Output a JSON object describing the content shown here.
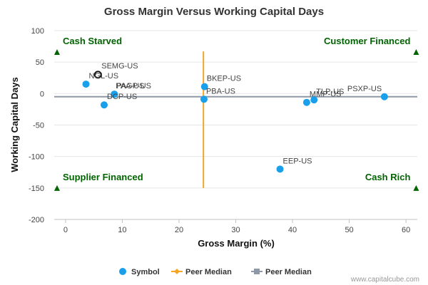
{
  "chart_data": {
    "type": "scatter",
    "title": "Gross Margin Versus Working Capital Days",
    "xlabel": "Gross Margin (%)",
    "ylabel": "Working Capital Days",
    "xlim": [
      -2,
      62
    ],
    "ylim": [
      -200,
      100
    ],
    "x_ticks": [
      0,
      10,
      20,
      30,
      40,
      50,
      60
    ],
    "y_ticks": [
      100,
      50,
      0,
      -50,
      -100,
      -150,
      -200
    ],
    "grid": "horizontal",
    "series": [
      {
        "name": "Symbol",
        "color": "#1a9fea",
        "points": [
          {
            "label": "SEMG-US",
            "x": 5.7,
            "y": 30,
            "highlight": true
          },
          {
            "label": "NGL-US",
            "x": 3.6,
            "y": 15
          },
          {
            "label": "PAA-US",
            "x": 8.6,
            "y": -1
          },
          {
            "label": "PAGP-US",
            "x": 8.6,
            "y": -1
          },
          {
            "label": "DCP-US",
            "x": 6.8,
            "y": -18
          },
          {
            "label": "BKEP-US",
            "x": 24.5,
            "y": 11
          },
          {
            "label": "PBA-US",
            "x": 24.4,
            "y": -9
          },
          {
            "label": "MMP-US",
            "x": 42.5,
            "y": -14
          },
          {
            "label": "TLP-US",
            "x": 43.8,
            "y": -10
          },
          {
            "label": "PSXP-US",
            "x": 56.2,
            "y": -5
          },
          {
            "label": "EEP-US",
            "x": 37.8,
            "y": -120
          }
        ]
      }
    ],
    "peer_median_x": {
      "name": "Peer Median",
      "value": 24.3,
      "y_range": [
        -150,
        67
      ],
      "color": "#f5a623"
    },
    "peer_median_y": {
      "name": "Peer Median",
      "value": -5,
      "color": "#8f98a6"
    },
    "quadrants": {
      "top_left": {
        "label": "Cash Starved",
        "x": -1.5,
        "y": 66
      },
      "top_right": {
        "label": "Customer Financed",
        "x": 61.8,
        "y": 66
      },
      "bottom_left": {
        "label": "Supplier Financed",
        "x": -1.5,
        "y": -150
      },
      "bottom_right": {
        "label": "Cash Rich",
        "x": 61.8,
        "y": -150
      }
    },
    "legend": {
      "placement": "bottom-center",
      "items": [
        {
          "label": "Symbol",
          "marker": "circle",
          "color": "#1a9fea"
        },
        {
          "label": "Peer Median",
          "marker": "diamond-line",
          "color": "#f5a623"
        },
        {
          "label": "Peer Median",
          "marker": "square-line",
          "color": "#8f98a6"
        }
      ]
    }
  },
  "credit": "www.capitalcube.com"
}
